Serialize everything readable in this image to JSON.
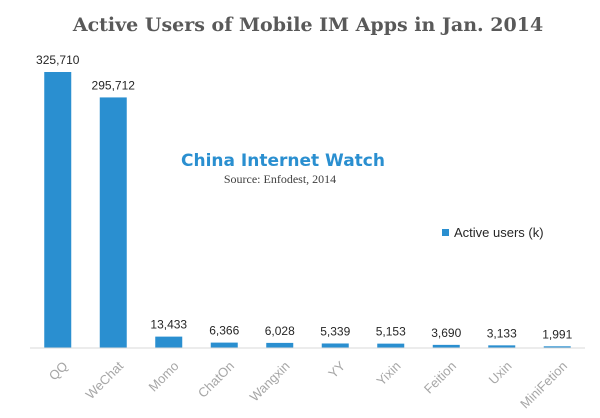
{
  "chart_data": {
    "type": "bar",
    "title": "Active Users of Mobile IM Apps in Jan. 2014",
    "watermark": "China Internet Watch",
    "source": "Source: Enfodest, 2014",
    "categories": [
      "QQ",
      "WeChat",
      "Momo",
      "ChatOn",
      "Wangxin",
      "YY",
      "Yixin",
      "Feition",
      "Uxin",
      "MiniFetion"
    ],
    "series": [
      {
        "name": "Active users (k)",
        "color": "#2a8fd0",
        "values": [
          325710,
          295712,
          13433,
          6366,
          6028,
          5339,
          5153,
          3690,
          3133,
          1991
        ],
        "labels": [
          "325,710",
          "295,712",
          "13,433",
          "6,366",
          "6,028",
          "5,339",
          "5,153",
          "3,690",
          "3,133",
          "1,991"
        ]
      }
    ],
    "xlabel": "",
    "ylabel": "",
    "ylim": [
      0,
      325710
    ],
    "grid": false,
    "legend_position": "right"
  }
}
